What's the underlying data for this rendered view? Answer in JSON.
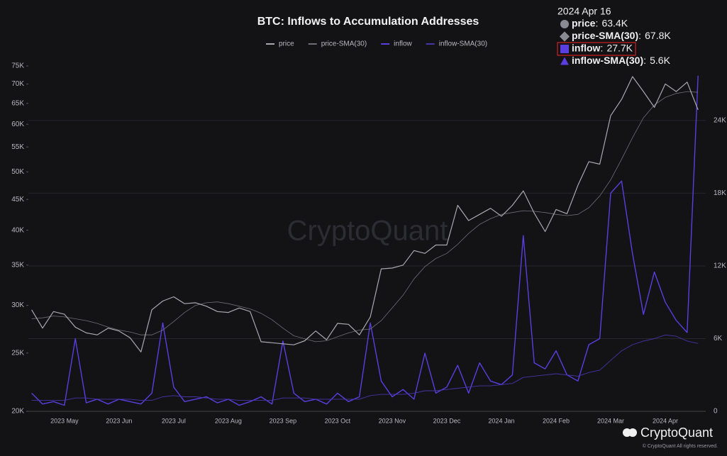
{
  "chart_data": {
    "type": "line",
    "title": "BTC: Inflows to Accumulation Addresses",
    "watermark": "CryptoQuant",
    "brand": "CryptoQuant",
    "copyright": "© CryptoQuant All rights reserved.",
    "categories": [
      null,
      null,
      null,
      "2023 May",
      null,
      null,
      null,
      null,
      "2023 Jun",
      null,
      null,
      null,
      null,
      "2023 Jul",
      null,
      null,
      null,
      null,
      "2023 Aug",
      null,
      null,
      null,
      null,
      "2023 Sep",
      null,
      null,
      null,
      null,
      "2023 Oct",
      null,
      null,
      null,
      null,
      "2023 Nov",
      null,
      null,
      null,
      null,
      "2023 Dec",
      null,
      null,
      null,
      null,
      "2024 Jan",
      null,
      null,
      null,
      null,
      "2024 Feb",
      null,
      null,
      null,
      null,
      "2024 Mar",
      null,
      null,
      null,
      null,
      "2024 Apr",
      null,
      null,
      null
    ],
    "series": [
      {
        "name": "price",
        "color": "#a8a8b0",
        "width": 1.2,
        "axis": "y",
        "values": [
          29500,
          27500,
          29300,
          29000,
          27600,
          27000,
          26800,
          27500,
          27200,
          26500,
          25100,
          29500,
          30500,
          31000,
          30200,
          30300,
          29900,
          29300,
          29200,
          29700,
          29300,
          26100,
          26000,
          25900,
          25800,
          26200,
          27200,
          26300,
          28000,
          27900,
          26800,
          28700,
          34500,
          34600,
          35000,
          37000,
          36600,
          37800,
          37800,
          44000,
          41500,
          42500,
          43500,
          42200,
          44000,
          46500,
          42700,
          39800,
          43300,
          42600,
          47500,
          52000,
          51500,
          62000,
          66000,
          72000,
          68000,
          64000,
          70000,
          68000,
          70500,
          63400
        ]
      },
      {
        "name": "price-SMA(30)",
        "color": "#6e6e76",
        "width": 0.8,
        "axis": "y",
        "values": [
          28500,
          28600,
          28800,
          28700,
          28500,
          28300,
          28000,
          27600,
          27300,
          27100,
          26800,
          26800,
          27300,
          28200,
          29200,
          30000,
          30300,
          30400,
          30200,
          29900,
          29600,
          29100,
          28400,
          27500,
          26700,
          26400,
          26100,
          26200,
          26600,
          27000,
          27300,
          27400,
          28300,
          29700,
          31200,
          33200,
          34800,
          35900,
          36600,
          37900,
          39500,
          40900,
          41800,
          42500,
          42800,
          43100,
          43000,
          42800,
          42500,
          42300,
          42500,
          43600,
          45600,
          48500,
          52500,
          57000,
          61500,
          64600,
          66500,
          67500,
          68000,
          67800
        ]
      },
      {
        "name": "inflow",
        "color": "#5a3ee0",
        "width": 1.4,
        "axis": "y2",
        "values": [
          1500,
          600,
          800,
          500,
          6000,
          700,
          1000,
          600,
          1000,
          800,
          600,
          1500,
          7300,
          2000,
          800,
          1000,
          1200,
          700,
          1000,
          500,
          800,
          1200,
          600,
          5800,
          1500,
          800,
          1000,
          600,
          1500,
          800,
          1200,
          7300,
          2500,
          1200,
          1800,
          1000,
          4800,
          1500,
          2000,
          3800,
          1500,
          4000,
          2500,
          2200,
          3000,
          14500,
          4000,
          3500,
          5000,
          3000,
          2500,
          5500,
          6000,
          18000,
          19000,
          13000,
          8000,
          11500,
          9000,
          7500,
          6500,
          27700
        ]
      },
      {
        "name": "inflow-SMA(30)",
        "color": "#4436a8",
        "width": 0.9,
        "axis": "y2",
        "values": [
          900,
          900,
          900,
          900,
          1100,
          1100,
          1000,
          1000,
          1000,
          1000,
          900,
          900,
          1200,
          1300,
          1200,
          1200,
          1100,
          1000,
          1000,
          900,
          900,
          900,
          900,
          1100,
          1100,
          1100,
          1000,
          1000,
          1000,
          1000,
          1000,
          1300,
          1400,
          1400,
          1400,
          1500,
          1700,
          1700,
          1800,
          1900,
          2000,
          2100,
          2100,
          2200,
          2300,
          2800,
          2900,
          3000,
          3100,
          3000,
          2900,
          3200,
          3400,
          4200,
          5000,
          5500,
          5800,
          6000,
          6300,
          6200,
          5800,
          5600
        ]
      }
    ],
    "ylog": true,
    "ylim": [
      20000,
      75000
    ],
    "yticks": [
      {
        "value": 20000,
        "label": "20K"
      },
      {
        "value": 25000,
        "label": "25K"
      },
      {
        "value": 30000,
        "label": "30K"
      },
      {
        "value": 35000,
        "label": "35K"
      },
      {
        "value": 40000,
        "label": "40K"
      },
      {
        "value": 45000,
        "label": "45K"
      },
      {
        "value": 50000,
        "label": "50K"
      },
      {
        "value": 55000,
        "label": "55K"
      },
      {
        "value": 60000,
        "label": "60K"
      },
      {
        "value": 65000,
        "label": "65K"
      },
      {
        "value": 70000,
        "label": "70K"
      },
      {
        "value": 75000,
        "label": "75K"
      }
    ],
    "y2lim": [
      0,
      28500
    ],
    "y2ticks": [
      0,
      {
        "value": 6000,
        "label": "6K"
      },
      {
        "value": 12000,
        "label": "12K"
      },
      {
        "value": 18000,
        "label": "18K"
      },
      {
        "value": 24000,
        "label": "24K"
      }
    ],
    "grid": true,
    "tooltip": {
      "date": "2024 Apr 16",
      "items": [
        {
          "label": "price",
          "value": "63.4K"
        },
        {
          "label": "price-SMA(30)",
          "value": "67.8K"
        },
        {
          "label": "inflow",
          "value": "27.7K"
        },
        {
          "label": "inflow-SMA(30)",
          "value": "5.6K"
        }
      ]
    }
  }
}
